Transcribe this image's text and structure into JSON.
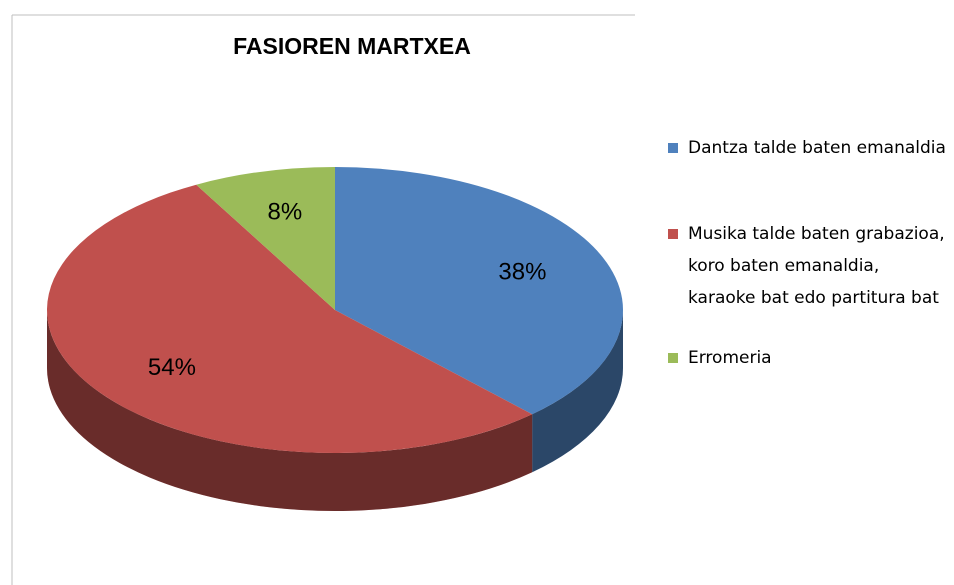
{
  "chart_data": {
    "type": "pie",
    "title": "FASIOREN MARTXEA",
    "categories": [
      "Dantza talde baten emanaldia",
      "Musika talde baten grabazioa,  koro baten emanaldia, karaoke bat edo partitura bat",
      "Erromeria"
    ],
    "values": [
      38,
      54,
      8
    ],
    "value_labels": [
      "38%",
      "54%",
      "8%"
    ],
    "colors": [
      "#4f81bd",
      "#c0504d",
      "#9bbb59"
    ],
    "legend": "right"
  }
}
